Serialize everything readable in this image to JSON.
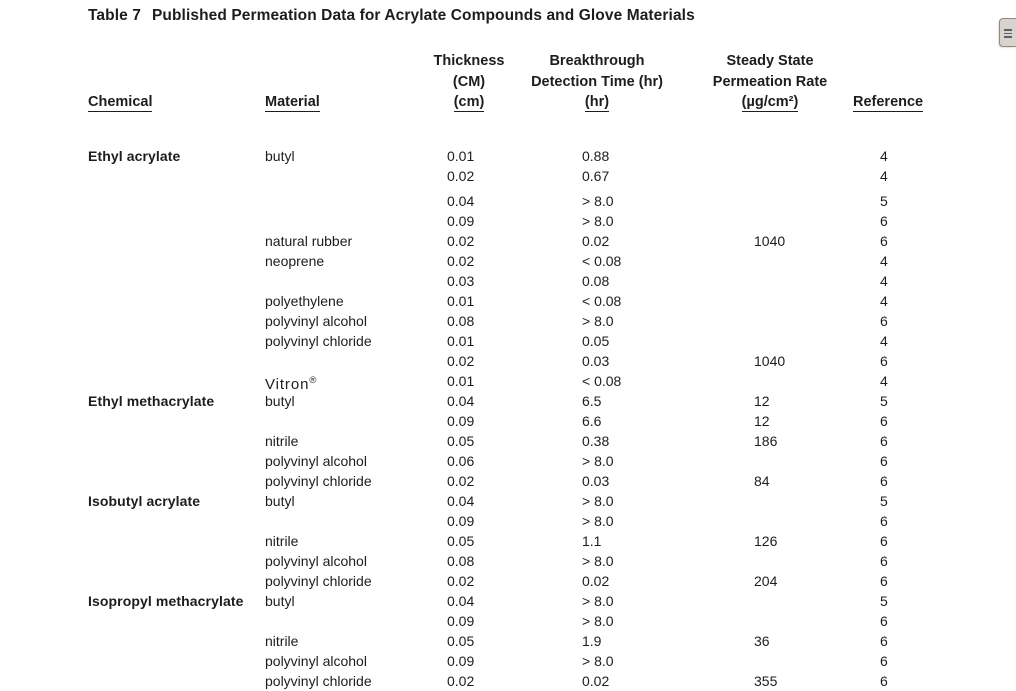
{
  "document": {
    "title_prefix": "Table 7",
    "title_text": "Published Permeation Data for Acrylate Compounds and Glove Materials"
  },
  "table": {
    "headers": {
      "chemical": "Chemical",
      "material": "Material",
      "thickness": {
        "line1": "Thickness",
        "line2": "(CM)",
        "line3": "(cm)"
      },
      "breakthrough": {
        "line1": "Breakthrough",
        "line2": "Detection Time (hr)",
        "line3": "(hr)"
      },
      "steady_state": {
        "line1": "Steady State",
        "line2": "Permeation Rate",
        "line3": "(µg/cm²)"
      },
      "reference": "Reference"
    },
    "rows": [
      {
        "chemical": "Ethyl acrylate",
        "material": "butyl",
        "thickness": "0.01",
        "breakthrough": "0.88",
        "rate": "",
        "reference": "4"
      },
      {
        "chemical": "",
        "material": "",
        "thickness": "0.02",
        "breakthrough": "0.67",
        "rate": "",
        "reference": "4"
      },
      {
        "chemical": "",
        "material": "",
        "thickness": "0.04",
        "breakthrough": "> 8.0",
        "rate": "",
        "reference": "5",
        "gap_before": true
      },
      {
        "chemical": "",
        "material": "",
        "thickness": "0.09",
        "breakthrough": "> 8.0",
        "rate": "",
        "reference": "6"
      },
      {
        "chemical": "",
        "material": "natural rubber",
        "thickness": "0.02",
        "breakthrough": "0.02",
        "rate": "1040",
        "reference": "6"
      },
      {
        "chemical": "",
        "material": "neoprene",
        "thickness": "0.02",
        "breakthrough": "< 0.08",
        "rate": "",
        "reference": "4"
      },
      {
        "chemical": "",
        "material": "",
        "thickness": "0.03",
        "breakthrough": "0.08",
        "rate": "",
        "reference": "4"
      },
      {
        "chemical": "",
        "material": "polyethylene",
        "thickness": "0.01",
        "breakthrough": "< 0.08",
        "rate": "",
        "reference": "4"
      },
      {
        "chemical": "",
        "material": "polyvinyl alcohol",
        "thickness": "0.08",
        "breakthrough": "> 8.0",
        "rate": "",
        "reference": "6"
      },
      {
        "chemical": "",
        "material": "polyvinyl chloride",
        "thickness": "0.01",
        "breakthrough": "0.05",
        "rate": "",
        "reference": "4"
      },
      {
        "chemical": "",
        "material": "",
        "thickness": "0.02",
        "breakthrough": "0.03",
        "rate": "1040",
        "reference": "6"
      },
      {
        "chemical": "",
        "material": "Vitron®",
        "brand": true,
        "thickness": "0.01",
        "breakthrough": "< 0.08",
        "rate": "",
        "reference": "4"
      },
      {
        "chemical": "Ethyl methacrylate",
        "material": "butyl",
        "thickness": "0.04",
        "breakthrough": "6.5",
        "rate": "12",
        "reference": "5"
      },
      {
        "chemical": "",
        "material": "",
        "thickness": "0.09",
        "breakthrough": "6.6",
        "rate": "12",
        "reference": "6"
      },
      {
        "chemical": "",
        "material": "nitrile",
        "thickness": "0.05",
        "breakthrough": "0.38",
        "rate": "186",
        "reference": "6"
      },
      {
        "chemical": "",
        "material": "polyvinyl alcohol",
        "thickness": "0.06",
        "breakthrough": "> 8.0",
        "rate": "",
        "reference": "6"
      },
      {
        "chemical": "",
        "material": "polyvinyl chloride",
        "thickness": "0.02",
        "breakthrough": "0.03",
        "rate": "84",
        "reference": "6"
      },
      {
        "chemical": "Isobutyl acrylate",
        "material": "butyl",
        "thickness": "0.04",
        "breakthrough": "> 8.0",
        "rate": "",
        "reference": "5"
      },
      {
        "chemical": "",
        "material": "",
        "thickness": "0.09",
        "breakthrough": "> 8.0",
        "rate": "",
        "reference": "6"
      },
      {
        "chemical": "",
        "material": "nitrile",
        "thickness": "0.05",
        "breakthrough": "1.1",
        "rate": "126",
        "reference": "6"
      },
      {
        "chemical": "",
        "material": "polyvinyl alcohol",
        "thickness": "0.08",
        "breakthrough": "> 8.0",
        "rate": "",
        "reference": "6"
      },
      {
        "chemical": "",
        "material": "polyvinyl chloride",
        "thickness": "0.02",
        "breakthrough": "0.02",
        "rate": "204",
        "reference": "6"
      },
      {
        "chemical": "Isopropyl methacrylate",
        "material": "butyl",
        "thickness": "0.04",
        "breakthrough": "> 8.0",
        "rate": "",
        "reference": "5"
      },
      {
        "chemical": "",
        "material": "",
        "thickness": "0.09",
        "breakthrough": "> 8.0",
        "rate": "",
        "reference": "6"
      },
      {
        "chemical": "",
        "material": "nitrile",
        "thickness": "0.05",
        "breakthrough": "1.9",
        "rate": "36",
        "reference": "6"
      },
      {
        "chemical": "",
        "material": "polyvinyl alcohol",
        "thickness": "0.09",
        "breakthrough": "> 8.0",
        "rate": "",
        "reference": "6"
      },
      {
        "chemical": "",
        "material": "polyvinyl chloride",
        "thickness": "0.02",
        "breakthrough": "0.02",
        "rate": "355",
        "reference": "6"
      }
    ]
  },
  "viewer": {
    "panel_handle_icon": "grip-lines-icon",
    "colors": {
      "text": "#1f1c1d",
      "handle_fill": "#d8d3cc",
      "handle_border": "#8e8b84",
      "handle_grip": "#5d616b"
    }
  }
}
